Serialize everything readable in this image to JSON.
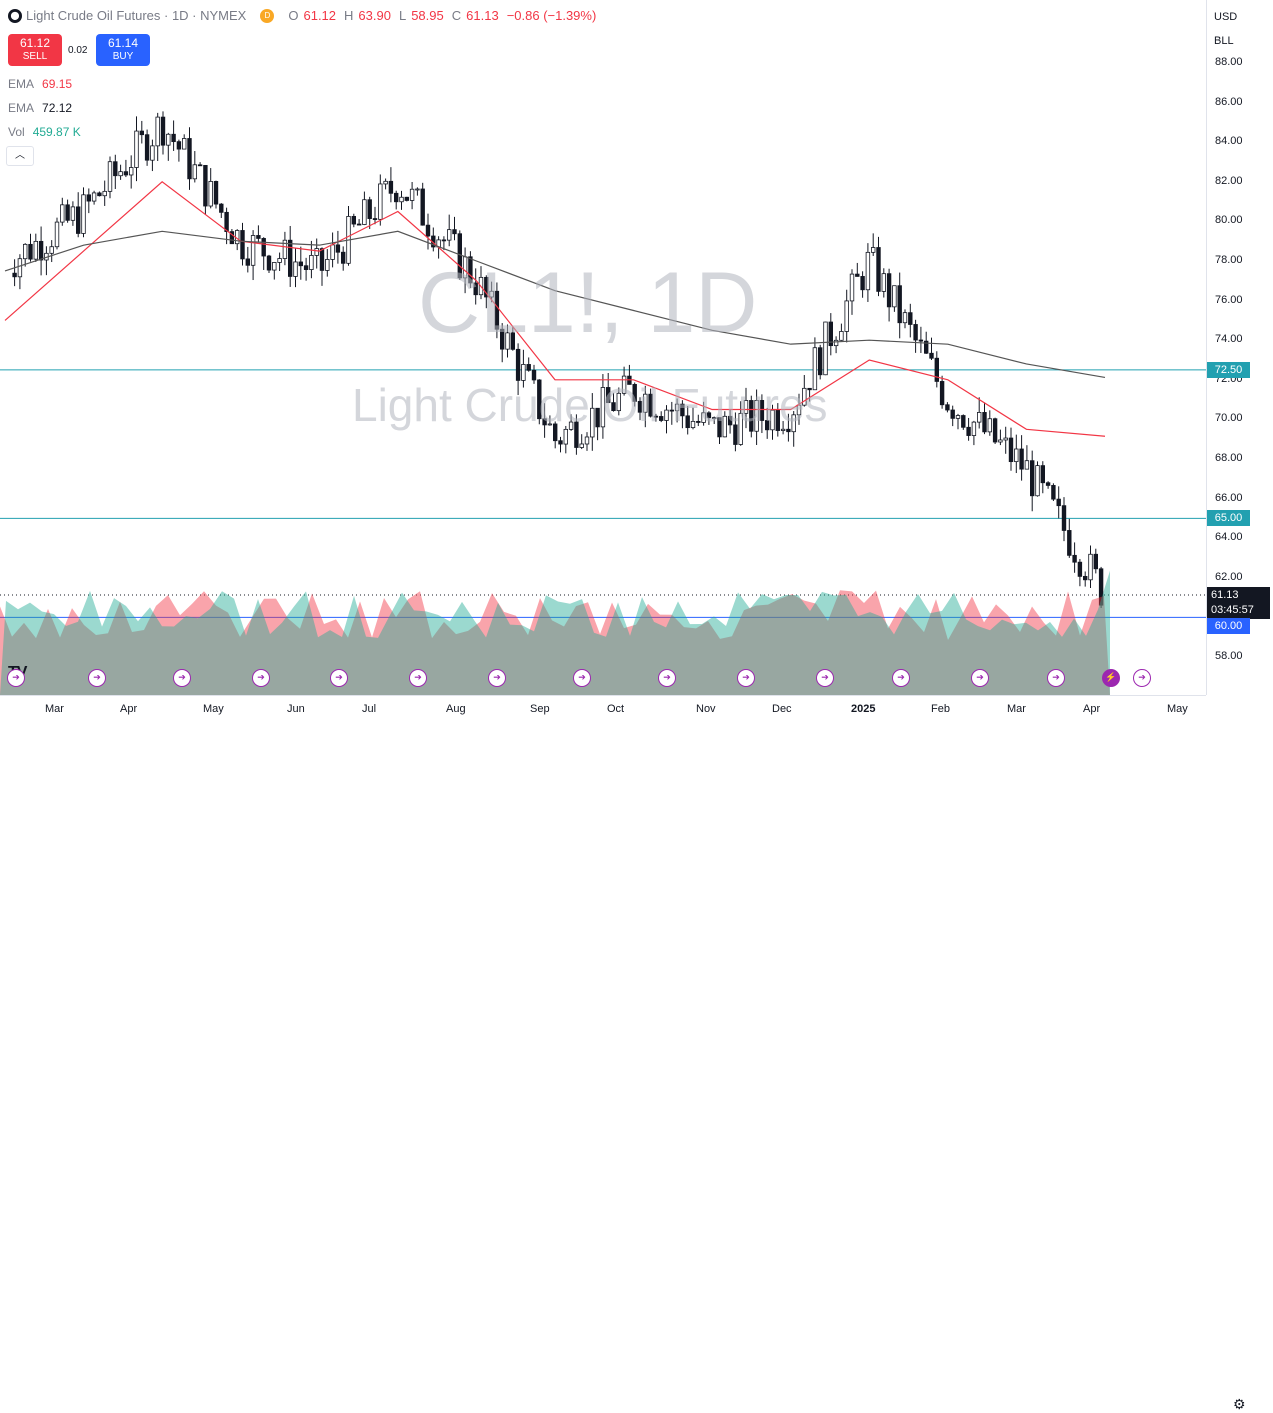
{
  "legend": {
    "symbol_icon": "tradingview-symbol-icon",
    "title": "Light Crude Oil Futures · 1D · NYMEX",
    "badge": "D",
    "open_label": "O",
    "open": "61.12",
    "high_label": "H",
    "high": "63.90",
    "low_label": "L",
    "low": "58.95",
    "close_label": "C",
    "close": "61.13",
    "change": "−0.86 (−1.39%)"
  },
  "trade": {
    "sell_price": "61.12",
    "sell_label": "SELL",
    "spread": "0.02",
    "buy_price": "61.14",
    "buy_label": "BUY"
  },
  "indicators": [
    {
      "name": "EMA",
      "value": "69.15",
      "color": "#f23645"
    },
    {
      "name": "EMA",
      "value": "72.12",
      "color": "#131722"
    },
    {
      "name": "Vol",
      "value": "459.87 K",
      "color": "#22ab94"
    }
  ],
  "collapse_glyph": "︿",
  "watermark": {
    "symbol": "CL1!, 1D",
    "name": "Light Crude Oil Futures"
  },
  "price_axis": {
    "currency": "USD",
    "unit": "BLL",
    "ticks": [
      "88.00",
      "86.00",
      "84.00",
      "82.00",
      "80.00",
      "78.00",
      "76.00",
      "74.00",
      "72.00",
      "70.00",
      "68.00",
      "66.00",
      "64.00",
      "62.00",
      "58.00"
    ],
    "level_labels": [
      "72.50",
      "65.00",
      "60.00"
    ],
    "last_price": "61.13",
    "countdown": "03:45:57"
  },
  "time_axis": {
    "months": [
      "Mar",
      "Apr",
      "May",
      "Jun",
      "Jul",
      "Aug",
      "Sep",
      "Oct",
      "Nov",
      "Dec",
      "2025",
      "Feb",
      "Mar",
      "Apr",
      "May"
    ]
  },
  "tv_logo": "TV",
  "event_glyphs": {
    "arrow": "➔",
    "bolt": "⚡"
  },
  "settings_glyph": "⚙",
  "colors": {
    "up": "#22ab94",
    "down": "#f23645",
    "level_line": "#22a0b0",
    "ema_fast": "#f23645",
    "ema_slow": "#555555",
    "event": "#9c27b0"
  },
  "chart_data": {
    "type": "candlestick",
    "symbol": "CL1!",
    "horizontal_levels": [
      72.5,
      65.0,
      60.0
    ],
    "ylim": [
      57,
      89.5
    ],
    "x": [
      "2024-02",
      "2024-03",
      "2024-04",
      "2024-05",
      "2024-06",
      "2024-07",
      "2024-08",
      "2024-09",
      "2024-10",
      "2024-11",
      "2024-12",
      "2025-01",
      "2025-02",
      "2025-03",
      "2025-04"
    ],
    "series": [
      {
        "name": "CL1!",
        "values": [
          77.8,
          80.5,
          85.0,
          79.0,
          77.5,
          82.0,
          77.0,
          69.0,
          71.5,
          69.5,
          70.5,
          78.0,
          71.0,
          67.5,
          61.13
        ]
      },
      {
        "name": "EMA",
        "values": [
          75.0,
          78.5,
          82.0,
          79.0,
          78.5,
          80.5,
          77.0,
          72.0,
          72.0,
          70.5,
          70.5,
          73.0,
          72.0,
          69.5,
          69.15
        ]
      },
      {
        "name": "EMA",
        "values": [
          77.5,
          78.8,
          79.5,
          79.0,
          78.8,
          79.5,
          78.0,
          76.5,
          75.5,
          74.5,
          73.8,
          74.0,
          73.8,
          72.8,
          72.12
        ]
      }
    ]
  }
}
